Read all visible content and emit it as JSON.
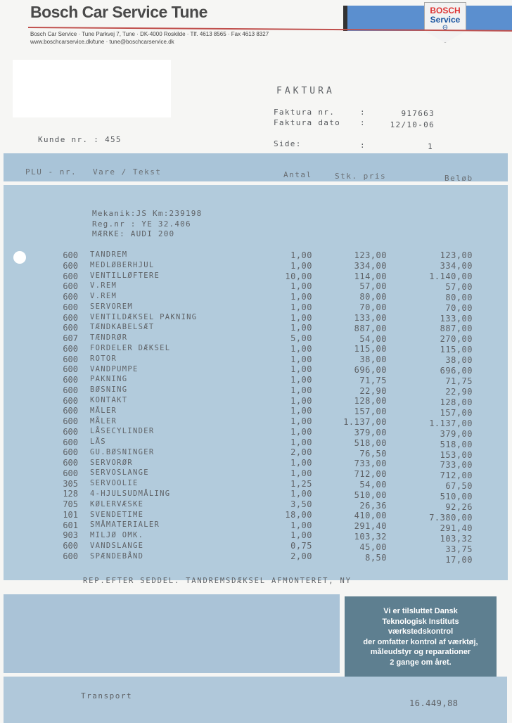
{
  "company": {
    "name": "Bosch Car Service Tune",
    "address_line": "Bosch Car Service · Tune Parkvej 7, Tune · DK-4000 Roskilde · Tlf. 4613 8565 · Fax 4613 8327",
    "web_line": "www.boschcarservice.dk/tune · tune@boschcarservice.dk",
    "logo": {
      "brand": "BOSCH",
      "sub": "Service"
    }
  },
  "invoice": {
    "title": "FAKTURA",
    "number_label": "Faktura nr.",
    "number": "917663",
    "date_label": "Faktura dato",
    "date": "12/10-06",
    "page_label": "Side:",
    "page": "1",
    "sep": ":",
    "customer_label": "Kunde nr. : 455"
  },
  "table": {
    "headers": {
      "plu": "PLU - nr.",
      "text": "Vare / Tekst",
      "qty": "Antal",
      "price": "Stk. pris",
      "amount": "Beløb"
    },
    "vehicle": [
      "Mekanik:JS Km:239198",
      "Reg.nr : YE 32.406",
      "MÆRKE: AUDI 200"
    ],
    "rows": [
      {
        "plu": "600",
        "text": "TANDREM",
        "qty": "1,00",
        "price": "123,00",
        "amount": "123,00"
      },
      {
        "plu": "600",
        "text": "MEDLØBERHJUL",
        "qty": "1,00",
        "price": "334,00",
        "amount": "334,00"
      },
      {
        "plu": "600",
        "text": "VENTILLØFTERE",
        "qty": "10,00",
        "price": "114,00",
        "amount": "1.140,00"
      },
      {
        "plu": "600",
        "text": "V.REM",
        "qty": "1,00",
        "price": "57,00",
        "amount": "57,00"
      },
      {
        "plu": "600",
        "text": "V.REM",
        "qty": "1,00",
        "price": "80,00",
        "amount": "80,00"
      },
      {
        "plu": "600",
        "text": "SERVOREM",
        "qty": "1,00",
        "price": "70,00",
        "amount": "70,00"
      },
      {
        "plu": "600",
        "text": "VENTILDÆKSEL PAKNING",
        "qty": "1,00",
        "price": "133,00",
        "amount": "133,00"
      },
      {
        "plu": "600",
        "text": "TÆNDKABELSÆT",
        "qty": "1,00",
        "price": "887,00",
        "amount": "887,00"
      },
      {
        "plu": "607",
        "text": "TÆNDRØR",
        "qty": "5,00",
        "price": "54,00",
        "amount": "270,00"
      },
      {
        "plu": "600",
        "text": "FORDELER DÆKSEL",
        "qty": "1,00",
        "price": "115,00",
        "amount": "115,00"
      },
      {
        "plu": "600",
        "text": "ROTOR",
        "qty": "1,00",
        "price": "38,00",
        "amount": "38,00"
      },
      {
        "plu": "600",
        "text": "VANDPUMPE",
        "qty": "1,00",
        "price": "696,00",
        "amount": "696,00"
      },
      {
        "plu": "600",
        "text": "PAKNING",
        "qty": "1,00",
        "price": "71,75",
        "amount": "71,75"
      },
      {
        "plu": "600",
        "text": "BØSNING",
        "qty": "1,00",
        "price": "22,90",
        "amount": "22,90"
      },
      {
        "plu": "600",
        "text": "KONTAKT",
        "qty": "1,00",
        "price": "128,00",
        "amount": "128,00"
      },
      {
        "plu": "600",
        "text": "MÅLER",
        "qty": "1,00",
        "price": "157,00",
        "amount": "157,00"
      },
      {
        "plu": "600",
        "text": "MÅLER",
        "qty": "1,00",
        "price": "1.137,00",
        "amount": "1.137,00"
      },
      {
        "plu": "600",
        "text": "LÅSECYLINDER",
        "qty": "1,00",
        "price": "379,00",
        "amount": "379,00"
      },
      {
        "plu": "600",
        "text": "LÅS",
        "qty": "1,00",
        "price": "518,00",
        "amount": "518,00"
      },
      {
        "plu": "600",
        "text": "GU.BØSNINGER",
        "qty": "2,00",
        "price": "76,50",
        "amount": "153,00"
      },
      {
        "plu": "600",
        "text": "SERVORØR",
        "qty": "1,00",
        "price": "733,00",
        "amount": "733,00"
      },
      {
        "plu": "600",
        "text": "SERVOSLANGE",
        "qty": "1,00",
        "price": "712,00",
        "amount": "712,00"
      },
      {
        "plu": "305",
        "text": "SERVOOLIE",
        "qty": "1,25",
        "price": "54,00",
        "amount": "67,50"
      },
      {
        "plu": "128",
        "text": "4-HJULSUDMÅLING",
        "qty": "1,00",
        "price": "510,00",
        "amount": "510,00"
      },
      {
        "plu": "705",
        "text": "KØLERVÆSKE",
        "qty": "3,50",
        "price": "26,36",
        "amount": "92,26"
      },
      {
        "plu": "101",
        "text": "SVENDETIME",
        "qty": "18,00",
        "price": "410,00",
        "amount": "7.380,00"
      },
      {
        "plu": "601",
        "text": "SMÅMATERIALER",
        "qty": "1,00",
        "price": "291,40",
        "amount": "291,40"
      },
      {
        "plu": "903",
        "text": "MILJØ OMK.",
        "qty": "1,00",
        "price": "103,32",
        "amount": "103,32"
      },
      {
        "plu": "600",
        "text": "VANDSLANGE",
        "qty": "0,75",
        "price": "45,00",
        "amount": "33,75"
      },
      {
        "plu": "600",
        "text": "SPÆNDEBÅND",
        "qty": "2,00",
        "price": "8,50",
        "amount": "17,00"
      }
    ],
    "note": "REP.EFTER SEDDEL. TANDREMSDÆKSEL AFMONTERET, NY"
  },
  "notice": [
    "Vi er tilsluttet Dansk",
    "Teknologisk Instituts",
    "værkstedskontrol",
    "der omfatter kontrol af værktøj,",
    "måleudstyr og reparationer",
    "2 gange om året."
  ],
  "footer": {
    "transport_label": "Transport",
    "transport_amount": "16.449,88"
  }
}
